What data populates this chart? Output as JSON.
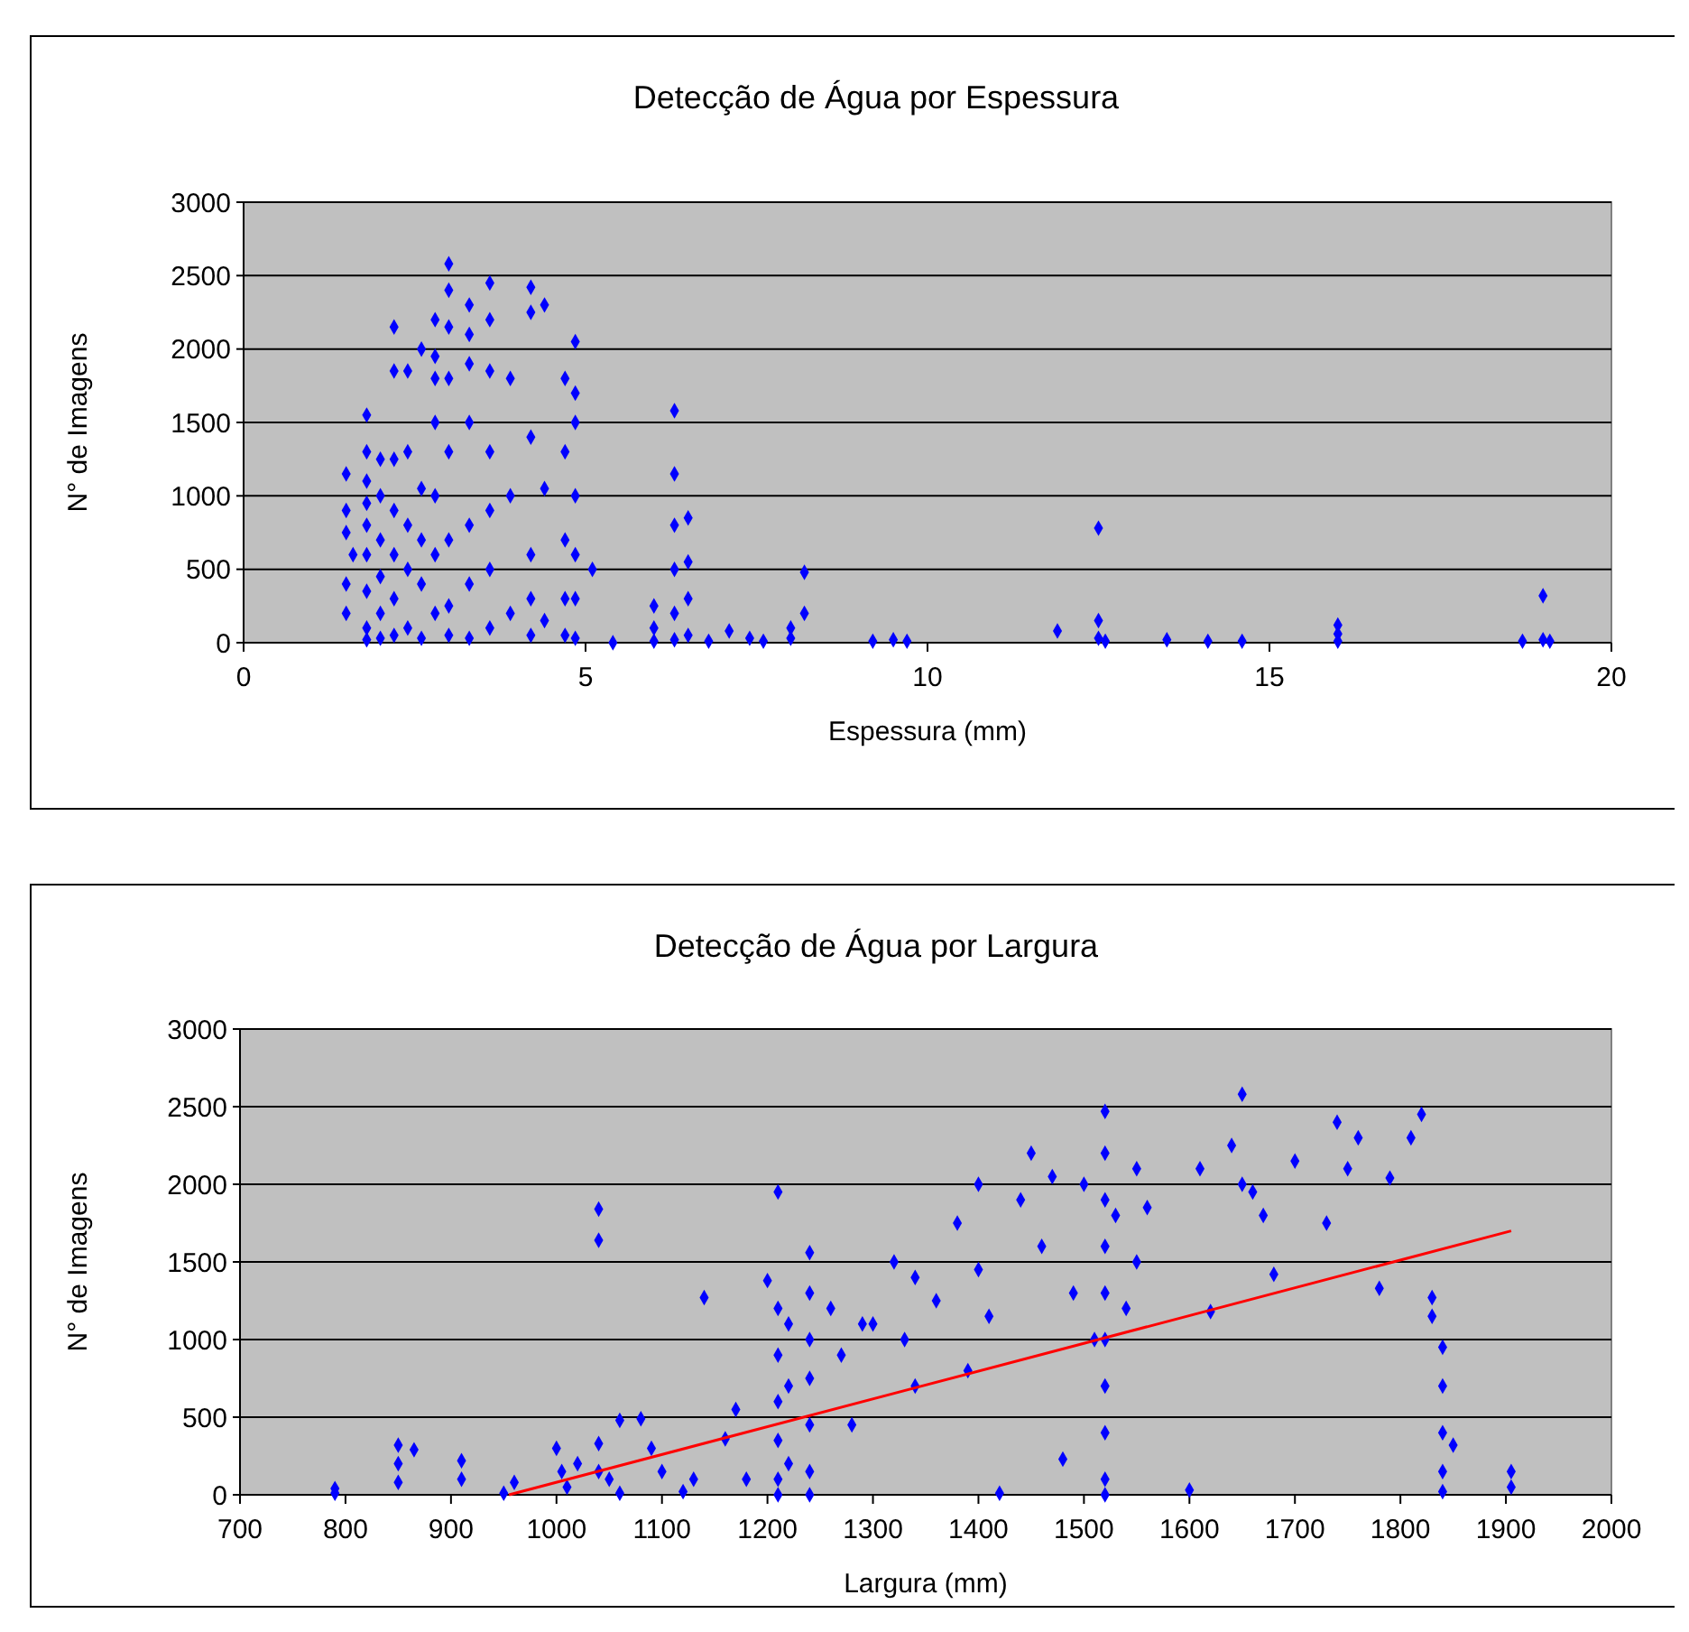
{
  "chart_data": [
    {
      "type": "scatter",
      "title": "Detecção de Água por Espessura",
      "xlabel": "Espessura (mm)",
      "ylabel": "N° de Imagens",
      "xlim": [
        0,
        20
      ],
      "xticks": [
        0,
        5,
        10,
        15,
        20
      ],
      "ylim": [
        0,
        3000
      ],
      "yticks": [
        0,
        500,
        1000,
        1500,
        2000,
        2500,
        3000
      ],
      "grid": "y",
      "marker": "diamond",
      "series": [
        {
          "color": "#0000ff",
          "x": [
            1.5,
            1.5,
            1.5,
            1.5,
            1.5,
            1.6,
            1.8,
            1.8,
            1.8,
            1.8,
            1.8,
            1.8,
            1.8,
            1.8,
            1.8,
            2.0,
            2.0,
            2.0,
            2.0,
            2.0,
            2.0,
            2.2,
            2.2,
            2.2,
            2.2,
            2.2,
            2.2,
            2.2,
            2.4,
            2.4,
            2.4,
            2.4,
            2.4,
            2.6,
            2.6,
            2.6,
            2.6,
            2.6,
            2.8,
            2.8,
            2.8,
            2.8,
            2.8,
            2.8,
            2.8,
            3.0,
            3.0,
            3.0,
            3.0,
            3.0,
            3.0,
            3.0,
            3.0,
            3.3,
            3.3,
            3.3,
            3.3,
            3.3,
            3.3,
            3.3,
            3.6,
            3.6,
            3.6,
            3.6,
            3.6,
            3.6,
            3.6,
            3.9,
            3.9,
            3.9,
            4.2,
            4.2,
            4.2,
            4.2,
            4.2,
            4.2,
            4.4,
            4.4,
            4.4,
            4.7,
            4.7,
            4.7,
            4.7,
            4.7,
            4.85,
            4.85,
            4.85,
            4.85,
            4.85,
            4.85,
            4.85,
            5.1,
            5.4,
            6.0,
            6.0,
            6.0,
            6.3,
            6.3,
            6.3,
            6.3,
            6.3,
            6.3,
            6.5,
            6.5,
            6.5,
            6.5,
            6.8,
            7.1,
            7.4,
            7.6,
            8.0,
            8.0,
            8.2,
            8.2,
            9.2,
            9.5,
            9.7,
            11.9,
            12.5,
            12.5,
            12.5,
            12.6,
            13.5,
            14.1,
            14.6,
            16.0,
            16.0,
            16.0,
            18.7,
            19.0,
            19.0,
            19.1
          ],
          "values": [
            1150,
            900,
            750,
            400,
            200,
            600,
            1550,
            1300,
            1100,
            950,
            800,
            600,
            350,
            100,
            20,
            1250,
            1000,
            700,
            450,
            200,
            30,
            2150,
            1850,
            1250,
            900,
            600,
            300,
            50,
            1850,
            1300,
            800,
            500,
            100,
            2000,
            1050,
            700,
            400,
            30,
            2200,
            1950,
            1800,
            1500,
            1000,
            600,
            200,
            2580,
            2400,
            2150,
            1800,
            1300,
            700,
            250,
            50,
            2300,
            2100,
            1900,
            1500,
            800,
            400,
            30,
            2450,
            2200,
            1850,
            1300,
            900,
            500,
            100,
            1800,
            1000,
            200,
            2420,
            2250,
            1400,
            600,
            300,
            50,
            2300,
            1050,
            150,
            1800,
            1300,
            700,
            300,
            50,
            2050,
            1700,
            1500,
            1000,
            600,
            300,
            30,
            500,
            0,
            250,
            100,
            10,
            1580,
            1150,
            800,
            500,
            200,
            20,
            850,
            550,
            300,
            50,
            10,
            80,
            30,
            10,
            30,
            100,
            200,
            480,
            10,
            20,
            10,
            80,
            780,
            150,
            30,
            10,
            20,
            10,
            10,
            120,
            60,
            10,
            10,
            320,
            20,
            10
          ]
        }
      ]
    },
    {
      "type": "scatter",
      "title": "Detecção de Água por Largura",
      "xlabel": "Largura (mm)",
      "ylabel": "N° de Imagens",
      "xlim": [
        700,
        2000
      ],
      "xticks": [
        700,
        800,
        900,
        1000,
        1100,
        1200,
        1300,
        1400,
        1500,
        1600,
        1700,
        1800,
        1900,
        2000
      ],
      "ylim": [
        0,
        3000
      ],
      "yticks": [
        0,
        500,
        1000,
        1500,
        2000,
        2500,
        3000
      ],
      "grid": "y",
      "marker": "diamond",
      "series": [
        {
          "color": "#0000ff",
          "x": [
            790,
            790,
            850,
            850,
            850,
            865,
            910,
            910,
            950,
            960,
            1000,
            1005,
            1010,
            1020,
            1040,
            1040,
            1040,
            1040,
            1050,
            1060,
            1060,
            1080,
            1090,
            1100,
            1120,
            1130,
            1140,
            1160,
            1170,
            1180,
            1200,
            1210,
            1210,
            1210,
            1210,
            1210,
            1210,
            1210,
            1220,
            1220,
            1220,
            1240,
            1240,
            1240,
            1240,
            1240,
            1240,
            1240,
            1260,
            1270,
            1280,
            1290,
            1300,
            1320,
            1330,
            1340,
            1340,
            1360,
            1380,
            1390,
            1400,
            1400,
            1410,
            1420,
            1440,
            1450,
            1460,
            1470,
            1480,
            1490,
            1500,
            1510,
            1520,
            1520,
            1520,
            1520,
            1520,
            1520,
            1520,
            1520,
            1520,
            1520,
            1530,
            1540,
            1550,
            1550,
            1560,
            1600,
            1610,
            1620,
            1640,
            1650,
            1650,
            1660,
            1670,
            1680,
            1700,
            1730,
            1740,
            1750,
            1760,
            1780,
            1790,
            1810,
            1820,
            1830,
            1830,
            1840,
            1840,
            1840,
            1840,
            1840,
            1850,
            1905,
            1905
          ],
          "values": [
            40,
            10,
            320,
            200,
            80,
            290,
            220,
            100,
            10,
            80,
            300,
            150,
            50,
            200,
            1840,
            1640,
            330,
            150,
            100,
            480,
            10,
            490,
            300,
            150,
            20,
            100,
            1270,
            360,
            550,
            100,
            1380,
            1950,
            1200,
            900,
            600,
            350,
            100,
            0,
            1100,
            700,
            200,
            1560,
            1300,
            1000,
            750,
            450,
            150,
            0,
            1200,
            900,
            450,
            1100,
            1100,
            1500,
            1000,
            1400,
            700,
            1250,
            1750,
            800,
            2000,
            1450,
            1150,
            10,
            1900,
            2200,
            1600,
            2050,
            230,
            1300,
            2000,
            1000,
            2470,
            2200,
            1900,
            1600,
            1300,
            1000,
            700,
            400,
            100,
            0,
            1800,
            1200,
            2100,
            1500,
            1850,
            30,
            2100,
            1180,
            2250,
            2580,
            2000,
            1950,
            1800,
            1420,
            2150,
            1750,
            2400,
            2100,
            2300,
            1330,
            2040,
            2300,
            2450,
            1270,
            1150,
            950,
            700,
            400,
            150,
            20,
            320,
            150,
            50
          ]
        },
        {
          "type": "line",
          "color": "#ff0000",
          "marker": "none",
          "x": [
            955,
            1905
          ],
          "values": [
            0,
            1700
          ]
        }
      ]
    }
  ]
}
